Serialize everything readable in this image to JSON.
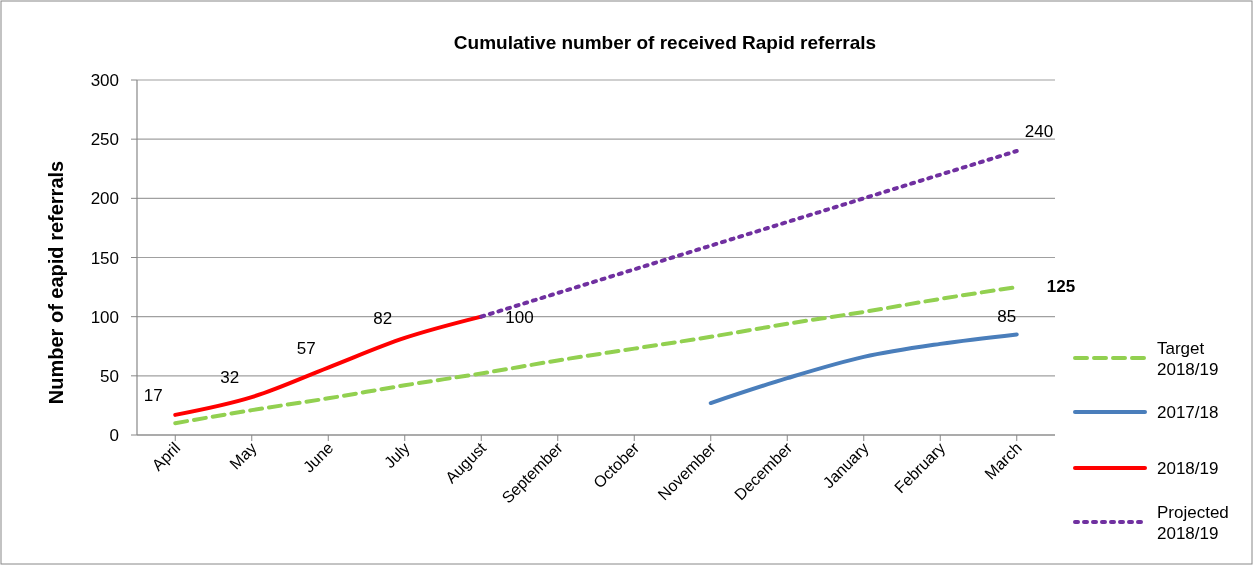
{
  "chart_data": {
    "type": "line",
    "title": "Cumulative number of received Rapid referrals",
    "ylabel": "Number of eapid referrals",
    "categories": [
      "April",
      "May",
      "June",
      "July",
      "August",
      "September",
      "October",
      "November",
      "December",
      "January",
      "February",
      "March"
    ],
    "ylim": [
      0,
      300
    ],
    "yticks": [
      0,
      50,
      100,
      150,
      200,
      250,
      300
    ],
    "grid": "y",
    "legend": "right",
    "series": [
      {
        "name": "Target 2018/19",
        "color": "#92d050",
        "line_style": "dashed",
        "values": [
          10,
          21,
          31,
          42,
          52,
          63,
          73,
          83,
          94,
          104,
          115,
          125
        ],
        "value_labels": [
          null,
          null,
          null,
          null,
          null,
          null,
          null,
          null,
          null,
          null,
          null,
          "125"
        ]
      },
      {
        "name": "2017/18",
        "color": "#4a7ebb",
        "line_style": "solid",
        "values": [
          null,
          null,
          null,
          null,
          null,
          null,
          null,
          27,
          48,
          66,
          77,
          85
        ],
        "value_labels": [
          null,
          null,
          null,
          null,
          null,
          null,
          null,
          null,
          null,
          null,
          null,
          "85"
        ]
      },
      {
        "name": "2018/19",
        "color": "#ff0000",
        "line_style": "solid",
        "values": [
          17,
          32,
          57,
          82,
          100,
          null,
          null,
          null,
          null,
          null,
          null,
          null
        ],
        "value_labels": [
          "17",
          "32",
          "57",
          "82",
          "100",
          null,
          null,
          null,
          null,
          null,
          null,
          null
        ]
      },
      {
        "name": "Projected 2018/19",
        "color": "#7030a0",
        "line_style": "dotted",
        "values": [
          null,
          null,
          null,
          null,
          100,
          120,
          140,
          160,
          180,
          200,
          220,
          240
        ],
        "value_labels": [
          null,
          null,
          null,
          null,
          null,
          null,
          null,
          null,
          null,
          null,
          null,
          "240"
        ]
      }
    ]
  }
}
